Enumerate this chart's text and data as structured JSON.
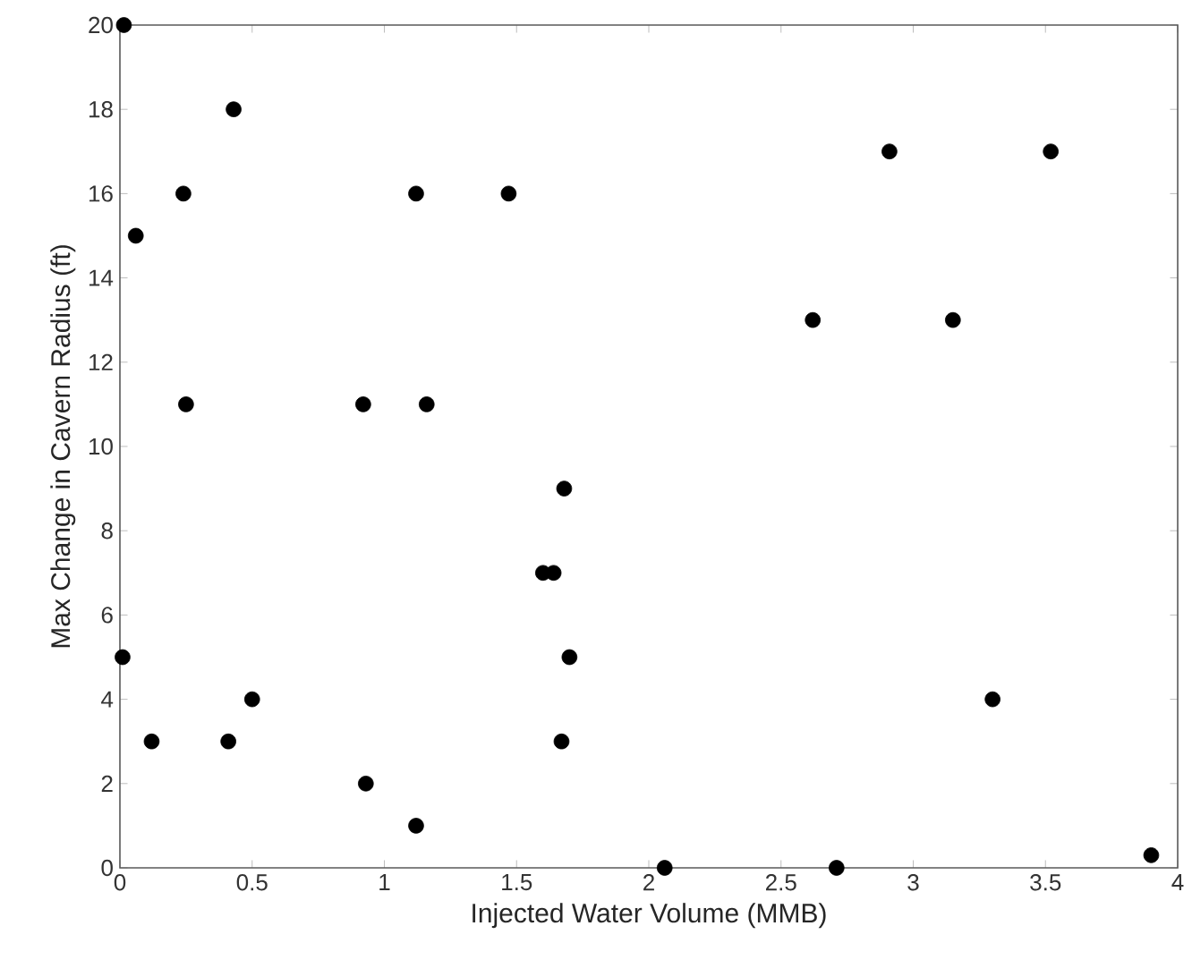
{
  "chart_data": {
    "type": "scatter",
    "xlabel": "Injected Water Volume (MMB)",
    "ylabel": "Max Change in Cavern Radius (ft)",
    "x": [
      0.015,
      0.06,
      0.24,
      0.25,
      0.43,
      0.92,
      1.12,
      1.16,
      1.47,
      1.68,
      0.01,
      0.12,
      0.41,
      0.5,
      0.93,
      1.12,
      1.6,
      1.64,
      1.7,
      1.67,
      2.91,
      3.52,
      2.62,
      3.15,
      2.06,
      2.71,
      3.3,
      3.9
    ],
    "values": [
      20,
      15,
      16,
      11,
      18,
      11,
      16,
      11,
      16,
      9,
      5,
      3,
      3,
      4,
      2,
      1,
      7,
      7,
      5,
      3,
      17,
      17,
      13,
      13,
      0,
      0,
      4,
      0.3
    ],
    "color": "#000000",
    "marker": "circle",
    "xlim": [
      0,
      4
    ],
    "ylim": [
      0,
      20
    ],
    "xticks": [
      0,
      0.5,
      1,
      1.5,
      2,
      2.5,
      3,
      3.5,
      4
    ],
    "yticks": [
      0,
      2,
      4,
      6,
      8,
      10,
      12,
      14,
      16,
      18,
      20
    ]
  }
}
